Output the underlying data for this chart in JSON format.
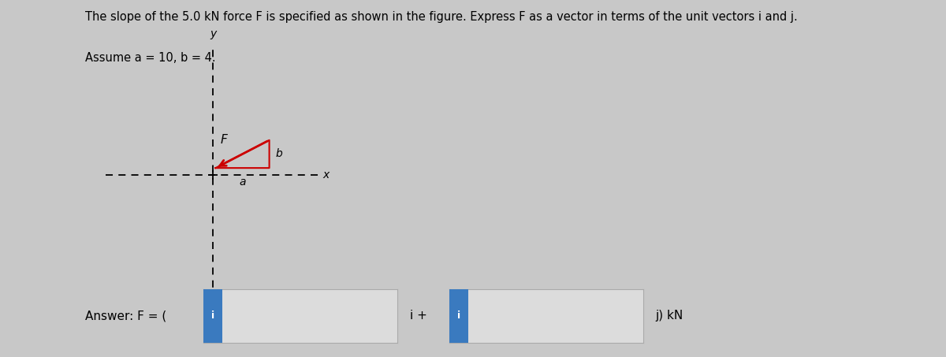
{
  "title_line1": "The slope of the 5.0 kN force F is specified as shown in the figure. Express F as a vector in terms of the unit vectors i and j.",
  "title_line2": "Assume a = 10, b = 4.",
  "bg_color": "#c8c8c8",
  "content_bg": "#e8e8e8",
  "answer_text_prefix": "Answer: F = (",
  "answer_text_i_plus": "i +",
  "answer_text_j_kN": "j) kN",
  "input_box_color": "#3a7abf",
  "input_box_text": "i",
  "input_box_text_color": "#ffffff",
  "axis_color": "#000000",
  "arrow_color": "#cc0000",
  "triangle_color": "#cc0000",
  "label_F": "F",
  "label_a": "a",
  "label_b": "b",
  "label_x": "x",
  "label_y": "y",
  "font_size_title": 10.5,
  "font_size_labels": 10,
  "font_size_answer": 11
}
